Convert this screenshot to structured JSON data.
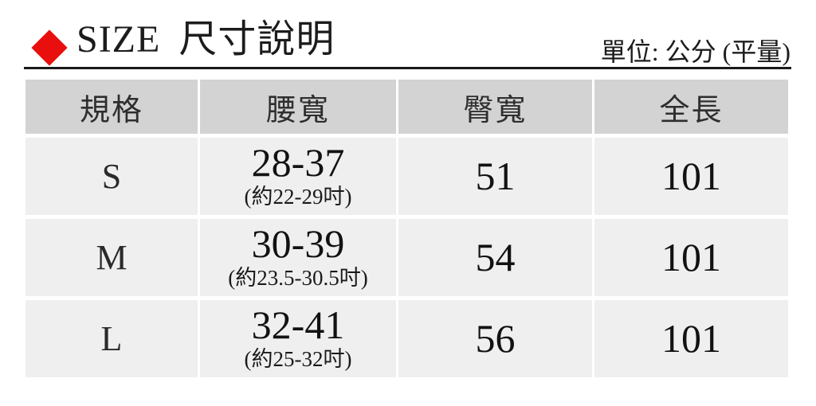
{
  "header": {
    "title": "SIZE 尺寸說明",
    "unit_label": "單位: 公分 (平量)",
    "accent_color": "#e90f0f",
    "rule_color": "#191919"
  },
  "table": {
    "header_bg": "#d3d3d3",
    "row_bg": "#f0efef",
    "columns": [
      "規格",
      "腰寬",
      "臀寬",
      "全長"
    ],
    "rows": [
      {
        "size": "S",
        "waist": "28-37",
        "waist_note": "(約22-29吋)",
        "hip": "51",
        "length": "101"
      },
      {
        "size": "M",
        "waist": "30-39",
        "waist_note": "(約23.5-30.5吋)",
        "hip": "54",
        "length": "101"
      },
      {
        "size": "L",
        "waist": "32-41",
        "waist_note": "(約25-32吋)",
        "hip": "56",
        "length": "101"
      }
    ]
  }
}
